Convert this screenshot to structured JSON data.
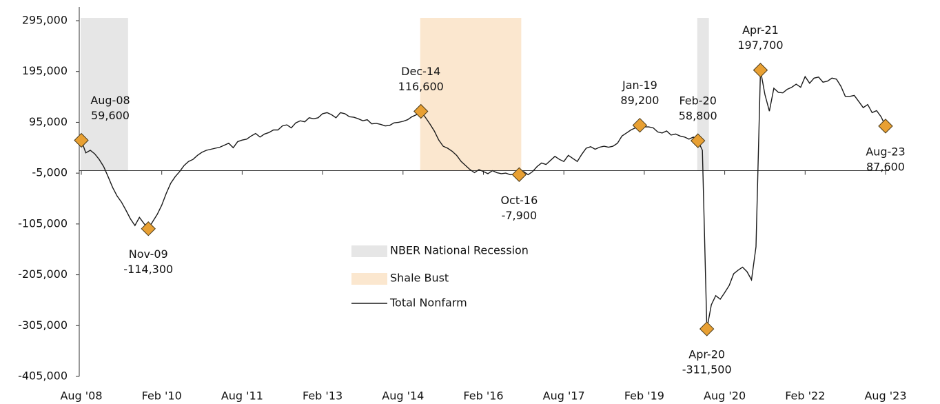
{
  "chart_data": {
    "type": "line",
    "categories": [
      "Aug '08",
      null,
      null,
      null,
      null,
      null,
      null,
      null,
      null,
      null,
      null,
      null,
      null,
      null,
      null,
      null,
      null,
      null,
      "Feb '10",
      null,
      null,
      null,
      null,
      null,
      null,
      null,
      null,
      null,
      null,
      null,
      null,
      null,
      null,
      null,
      null,
      null,
      "Aug '11",
      null,
      null,
      null,
      null,
      null,
      null,
      null,
      null,
      null,
      null,
      null,
      null,
      null,
      null,
      null,
      null,
      null,
      "Feb '13",
      null,
      null,
      null,
      null,
      null,
      null,
      null,
      null,
      null,
      null,
      null,
      null,
      null,
      null,
      null,
      null,
      null,
      "Aug '14",
      null,
      null,
      null,
      null,
      null,
      null,
      null,
      null,
      null,
      null,
      null,
      null,
      null,
      null,
      null,
      null,
      null,
      "Feb '16",
      null,
      null,
      null,
      null,
      null,
      null,
      null,
      null,
      null,
      null,
      null,
      null,
      null,
      null,
      null,
      null,
      null,
      "Aug '17",
      null,
      null,
      null,
      null,
      null,
      null,
      null,
      null,
      null,
      null,
      null,
      null,
      null,
      null,
      null,
      null,
      null,
      "Feb '19",
      null,
      null,
      null,
      null,
      null,
      null,
      null,
      null,
      null,
      null,
      null,
      null,
      null,
      null,
      null,
      null,
      null,
      "Aug '20",
      null,
      null,
      null,
      null,
      null,
      null,
      null,
      null,
      null,
      null,
      null,
      null,
      null,
      null,
      null,
      null,
      null,
      "Feb '22",
      null,
      null,
      null,
      null,
      null,
      null,
      null,
      null,
      null,
      null,
      null,
      null,
      null,
      null,
      null,
      null,
      null,
      "Aug '23"
    ],
    "series": [
      {
        "name": "Total Nonfarm",
        "color": "#1a1a1a",
        "values": [
          59600,
          35000,
          40000,
          33000,
          22000,
          8000,
          -12000,
          -33000,
          -50000,
          -62000,
          -78000,
          -95000,
          -108000,
          -92000,
          -104000,
          -114300,
          -100000,
          -86000,
          -68000,
          -45000,
          -25000,
          -12000,
          -2000,
          10000,
          18000,
          22000,
          30000,
          36000,
          40000,
          42000,
          44000,
          46000,
          50000,
          54000,
          45000,
          57000,
          60000,
          62000,
          68000,
          73000,
          66000,
          72000,
          75000,
          80000,
          80000,
          88000,
          90000,
          84000,
          94000,
          98000,
          96000,
          104000,
          102000,
          104000,
          112000,
          114000,
          110000,
          104000,
          114000,
          112000,
          106000,
          105000,
          102000,
          98000,
          100000,
          92000,
          93000,
          91000,
          88000,
          89000,
          94000,
          95000,
          97000,
          100000,
          106000,
          110000,
          116600,
          105000,
          92000,
          78000,
          60000,
          48000,
          44000,
          38000,
          30000,
          18000,
          10000,
          2000,
          -4000,
          2000,
          -2000,
          -6000,
          0,
          -4000,
          -6000,
          -5000,
          -8000,
          -7000,
          -7900,
          -2000,
          -8000,
          -2000,
          8000,
          15000,
          12000,
          20000,
          28000,
          22000,
          18000,
          30000,
          24000,
          18000,
          32000,
          44000,
          47000,
          42000,
          46000,
          48000,
          46000,
          48000,
          54000,
          68000,
          74000,
          80000,
          84000,
          89200,
          86000,
          86000,
          84000,
          76000,
          74000,
          78000,
          70000,
          72000,
          68000,
          66000,
          62000,
          66000,
          58800,
          40000,
          -311500,
          -264000,
          -246000,
          -253000,
          -240000,
          -226000,
          -203000,
          -196000,
          -190000,
          -199000,
          -215000,
          -150000,
          197700,
          150000,
          117000,
          162000,
          154000,
          153000,
          160000,
          164000,
          170000,
          164000,
          185000,
          172000,
          182000,
          184000,
          174000,
          176000,
          182000,
          180000,
          166000,
          146000,
          146000,
          148000,
          136000,
          124000,
          130000,
          114000,
          118000,
          106000,
          87600
        ],
        "value_labels": [
          "59,600",
          null,
          null,
          null,
          null,
          null,
          null,
          null,
          null,
          null,
          null,
          null,
          null,
          null,
          null,
          "-114,300",
          null,
          null,
          null,
          null,
          null,
          null,
          null,
          null,
          null,
          null,
          null,
          null,
          null,
          null,
          null,
          null,
          null,
          null,
          null,
          null,
          null,
          null,
          null,
          null,
          null,
          null,
          null,
          null,
          null,
          null,
          null,
          null,
          null,
          null,
          null,
          null,
          null,
          null,
          null,
          null,
          null,
          null,
          null,
          null,
          null,
          null,
          null,
          null,
          null,
          null,
          null,
          null,
          null,
          null,
          null,
          null,
          null,
          null,
          null,
          null,
          "116,600",
          null,
          null,
          null,
          null,
          null,
          null,
          null,
          null,
          null,
          null,
          null,
          null,
          null,
          null,
          null,
          null,
          null,
          null,
          null,
          null,
          null,
          "-7,900",
          null,
          null,
          null,
          null,
          null,
          null,
          null,
          null,
          null,
          null,
          null,
          null,
          null,
          null,
          null,
          null,
          null,
          null,
          null,
          null,
          null,
          null,
          null,
          null,
          null,
          null,
          "89,200",
          null,
          null,
          null,
          null,
          null,
          null,
          null,
          null,
          null,
          null,
          null,
          null,
          "58,800",
          null,
          "-311,500",
          null,
          null,
          null,
          null,
          null,
          null,
          null,
          null,
          null,
          null,
          null,
          "197,700",
          null,
          null,
          null,
          null,
          null,
          null,
          null,
          null,
          null,
          null,
          null,
          null,
          null,
          null,
          null,
          null,
          null,
          null,
          null,
          null,
          null,
          null,
          null,
          null,
          null,
          null,
          null,
          "87,600"
        ],
        "point_labels": [
          "Aug-08",
          null,
          null,
          null,
          null,
          null,
          null,
          null,
          null,
          null,
          null,
          null,
          null,
          null,
          null,
          "Nov-09",
          null,
          null,
          null,
          null,
          null,
          null,
          null,
          null,
          null,
          null,
          null,
          null,
          null,
          null,
          null,
          null,
          null,
          null,
          null,
          null,
          null,
          null,
          null,
          null,
          null,
          null,
          null,
          null,
          null,
          null,
          null,
          null,
          null,
          null,
          null,
          null,
          null,
          null,
          null,
          null,
          null,
          null,
          null,
          null,
          null,
          null,
          null,
          null,
          null,
          null,
          null,
          null,
          null,
          null,
          null,
          null,
          null,
          null,
          null,
          null,
          "Dec-14",
          null,
          null,
          null,
          null,
          null,
          null,
          null,
          null,
          null,
          null,
          null,
          null,
          null,
          null,
          null,
          null,
          null,
          null,
          null,
          null,
          null,
          "Oct-16",
          null,
          null,
          null,
          null,
          null,
          null,
          null,
          null,
          null,
          null,
          null,
          null,
          null,
          null,
          null,
          null,
          null,
          null,
          null,
          null,
          null,
          null,
          null,
          null,
          null,
          null,
          "Jan-19",
          null,
          null,
          null,
          null,
          null,
          null,
          null,
          null,
          null,
          null,
          null,
          null,
          "Feb-20",
          null,
          "Apr-20",
          null,
          null,
          null,
          null,
          null,
          null,
          null,
          null,
          null,
          null,
          null,
          "Apr-21",
          null,
          null,
          null,
          null,
          null,
          null,
          null,
          null,
          null,
          null,
          null,
          null,
          null,
          null,
          null,
          null,
          null,
          null,
          null,
          null,
          null,
          null,
          null,
          null,
          null,
          null,
          null,
          "Aug-23"
        ]
      }
    ],
    "shading": [
      {
        "name": "NBER National Recession",
        "color": "#e6e6e6",
        "spans": [
          [
            0,
            10
          ],
          [
            138,
            140
          ]
        ]
      },
      {
        "name": "Shale Bust",
        "color": "#fbe7cf",
        "spans": [
          [
            76,
            98
          ]
        ]
      }
    ],
    "marker_color": "#e8a033",
    "ylim": [
      -405000,
      295000
    ],
    "yticks": [
      {
        "value": -405000,
        "label": "-405,000"
      },
      {
        "value": -305000,
        "label": "-305,000"
      },
      {
        "value": -205000,
        "label": "-205,000"
      },
      {
        "value": -105000,
        "label": "-105,000"
      },
      {
        "value": -5000,
        "label": "-5,000"
      },
      {
        "value": 95000,
        "label": "95,000"
      },
      {
        "value": 195000,
        "label": "195,000"
      },
      {
        "value": 295000,
        "label": "295,000"
      }
    ],
    "grid": false
  }
}
